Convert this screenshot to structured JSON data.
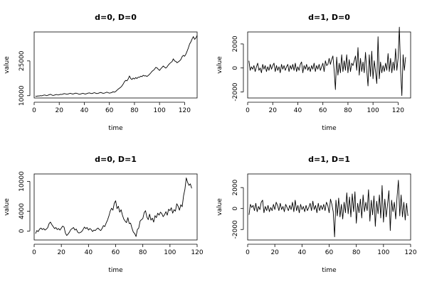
{
  "figure": {
    "line_color": "#000000",
    "background": "#ffffff"
  },
  "chart_data": [
    {
      "type": "line",
      "title": "d=0, D=0",
      "xlabel": "time",
      "ylabel": "value",
      "xlim": [
        0,
        130
      ],
      "ylim": [
        9000,
        37500
      ],
      "x_ticks": [
        0,
        20,
        40,
        60,
        80,
        100,
        120
      ],
      "y_ticks": [
        10000,
        25000
      ],
      "grid": false,
      "series": [
        {
          "x_start": 1,
          "values": [
            9800,
            9700,
            9900,
            9850,
            10000,
            9950,
            10100,
            10300,
            10200,
            10000,
            10200,
            10400,
            10600,
            10300,
            10100,
            10200,
            10400,
            10500,
            10300,
            10400,
            10600,
            10500,
            10700,
            10900,
            10800,
            10600,
            10700,
            10900,
            11000,
            10800,
            10700,
            10900,
            11100,
            11000,
            10800,
            10600,
            10700,
            10900,
            11000,
            10800,
            10700,
            10900,
            11100,
            11200,
            11000,
            10900,
            11100,
            11300,
            11100,
            10900,
            11000,
            11200,
            11400,
            11200,
            11000,
            11100,
            11300,
            11500,
            11300,
            11100,
            11200,
            11400,
            11700,
            11500,
            11800,
            12300,
            12800,
            13200,
            13600,
            14200,
            15000,
            16000,
            16600,
            16400,
            17200,
            18500,
            17400,
            17000,
            17600,
            17200,
            17800,
            17400,
            18000,
            17900,
            18400,
            18200,
            18800,
            18500,
            18600,
            18300,
            18700,
            19200,
            19800,
            20500,
            20900,
            21400,
            22200,
            22000,
            21400,
            20900,
            21600,
            22200,
            22800,
            22300,
            21900,
            22400,
            23200,
            23800,
            24300,
            24700,
            25900,
            25000,
            24800,
            24200,
            24600,
            25000,
            25600,
            26800,
            27400,
            27000,
            27900,
            29200,
            30600,
            32300,
            33200,
            34500,
            35500,
            34300,
            34900,
            36000
          ]
        }
      ]
    },
    {
      "type": "line",
      "title": "d=1, D=0",
      "xlabel": "time",
      "ylabel": "value",
      "xlim": [
        0,
        130
      ],
      "ylim": [
        -2500,
        3000
      ],
      "x_ticks": [
        0,
        20,
        40,
        60,
        80,
        100,
        120
      ],
      "y_ticks": [
        -2000,
        0,
        2000
      ],
      "grid": false,
      "series": [
        {
          "x_start": 1,
          "values": [
            600,
            -200,
            100,
            -100,
            200,
            -300,
            100,
            400,
            -200,
            0,
            -400,
            300,
            -100,
            200,
            -300,
            100,
            -200,
            300,
            -100,
            200,
            400,
            -300,
            200,
            -200,
            100,
            -400,
            300,
            -100,
            200,
            -200,
            100,
            300,
            -300,
            200,
            -100,
            300,
            -200,
            400,
            -300,
            100,
            -200,
            300,
            500,
            -400,
            200,
            -100,
            300,
            -200,
            100,
            -300,
            200,
            -100,
            400,
            -300,
            200,
            -100,
            300,
            -200,
            100,
            400,
            -300,
            600,
            200,
            300,
            800,
            300,
            700,
            1000,
            -200,
            -1800,
            900,
            -600,
            400,
            -400,
            1100,
            -300,
            600,
            -200,
            1100,
            -400,
            700,
            -300,
            400,
            200,
            600,
            1000,
            -200,
            1700,
            -600,
            800,
            -300,
            500,
            -400,
            1300,
            -200,
            -1500,
            1100,
            -700,
            1400,
            -900,
            600,
            -300,
            -1300,
            2600,
            -900,
            500,
            -400,
            200,
            -300,
            400,
            -200,
            1200,
            -300,
            800,
            -400,
            500,
            -200,
            1600,
            -200,
            800,
            3400,
            -200,
            -2300,
            1100,
            -200,
            900
          ]
        }
      ]
    },
    {
      "type": "line",
      "title": "d=0, D=1",
      "xlabel": "time",
      "ylabel": "value",
      "xlim": [
        0,
        120
      ],
      "ylim": [
        -1800,
        11500
      ],
      "x_ticks": [
        0,
        20,
        40,
        60,
        80,
        100,
        120
      ],
      "y_ticks": [
        0,
        4000,
        10000
      ],
      "grid": false,
      "series": [
        {
          "x_start": 1,
          "values": [
            -500,
            100,
            -100,
            400,
            600,
            300,
            500,
            200,
            400,
            700,
            1500,
            1800,
            1300,
            900,
            500,
            700,
            300,
            500,
            200,
            600,
            1000,
            800,
            -400,
            -900,
            -600,
            -200,
            300,
            500,
            700,
            200,
            400,
            -200,
            -400,
            -300,
            -100,
            300,
            800,
            500,
            700,
            200,
            500,
            300,
            -100,
            200,
            100,
            400,
            600,
            300,
            100,
            500,
            1100,
            900,
            1600,
            2200,
            3000,
            4000,
            4600,
            4200,
            5600,
            6100,
            4500,
            5000,
            3800,
            4300,
            3200,
            2400,
            2000,
            1700,
            2700,
            1500,
            1600,
            600,
            -200,
            -500,
            -1100,
            300,
            600,
            2000,
            2300,
            2500,
            3700,
            4100,
            2800,
            2300,
            3400,
            2200,
            2600,
            1800,
            3100,
            2700,
            3600,
            3200,
            3800,
            3500,
            2900,
            3300,
            3900,
            3200,
            4400,
            4100,
            4700,
            3600,
            4300,
            4000,
            5500,
            5000,
            4200,
            5300,
            4900,
            7100,
            8400,
            10700,
            9800,
            9200,
            9500,
            8600
          ]
        }
      ]
    },
    {
      "type": "line",
      "title": "d=1, D=1",
      "xlabel": "time",
      "ylabel": "value",
      "xlim": [
        0,
        120
      ],
      "ylim": [
        -3000,
        3300
      ],
      "x_ticks": [
        0,
        20,
        40,
        60,
        80,
        100,
        120
      ],
      "y_ticks": [
        -2000,
        0,
        2000
      ],
      "grid": false,
      "series": [
        {
          "x_start": 1,
          "values": [
            -600,
            400,
            100,
            300,
            -200,
            500,
            -300,
            200,
            -100,
            600,
            800,
            -400,
            200,
            -200,
            300,
            -300,
            100,
            -200,
            400,
            -100,
            600,
            300,
            -200,
            500,
            -100,
            200,
            -300,
            400,
            100,
            -200,
            300,
            -100,
            600,
            -300,
            800,
            -200,
            300,
            -400,
            400,
            -100,
            200,
            -300,
            300,
            -200,
            100,
            500,
            -200,
            700,
            -100,
            300,
            -400,
            500,
            -200,
            300,
            -100,
            400,
            -200,
            600,
            300,
            -400,
            900,
            400,
            -300,
            -2700,
            800,
            -700,
            1000,
            -800,
            400,
            -1000,
            600,
            -400,
            1500,
            -500,
            1100,
            -800,
            1400,
            -300,
            1600,
            -1400,
            500,
            -400,
            900,
            -900,
            1300,
            -300,
            600,
            -200,
            1800,
            -1200,
            800,
            -600,
            1200,
            -1700,
            700,
            -500,
            1300,
            -900,
            2200,
            -1300,
            900,
            -800,
            400,
            1700,
            -2100,
            800,
            -300,
            600,
            -1000,
            1100,
            2700,
            -700,
            1300,
            -800,
            600,
            -1100,
            500,
            -700
          ]
        }
      ]
    }
  ]
}
